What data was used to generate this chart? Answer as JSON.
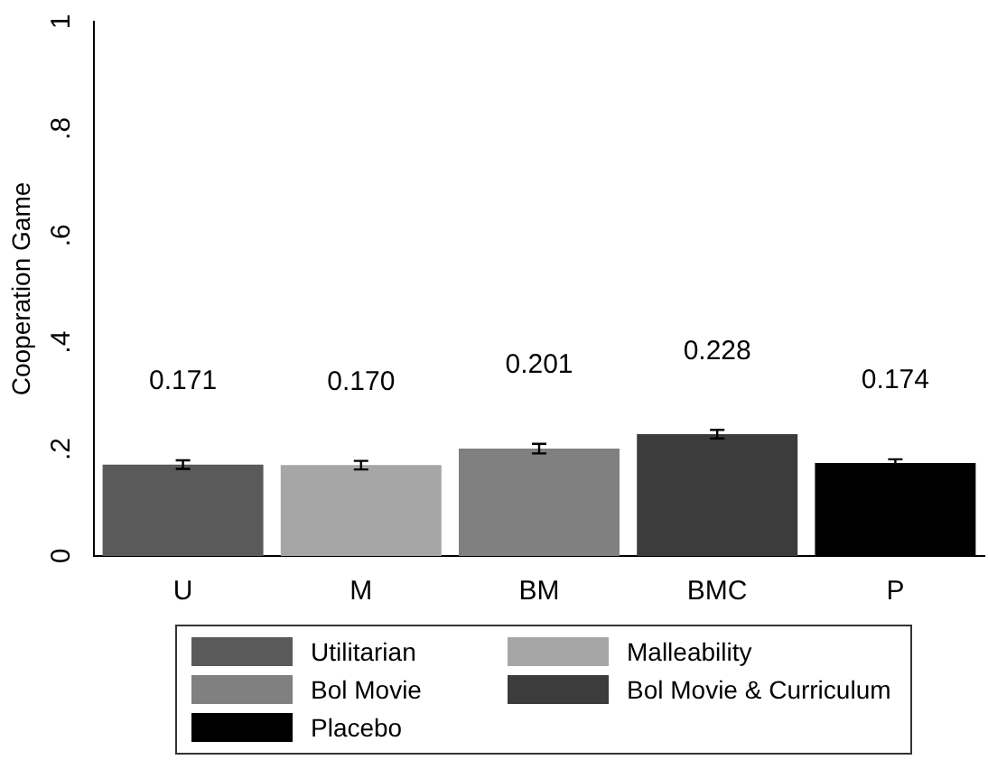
{
  "chart_data": {
    "type": "bar",
    "ylabel": "Cooperation Game",
    "categories": [
      "U",
      "M",
      "BM",
      "BMC",
      "P"
    ],
    "series": [
      {
        "name": "Utilitarian",
        "color": "#5a5a5a",
        "values": [
          0.171,
          null,
          null,
          null,
          null
        ],
        "errors": [
          0.008,
          null,
          null,
          null,
          null
        ]
      },
      {
        "name": "Malleability",
        "color": "#a6a6a6",
        "values": [
          null,
          0.17,
          null,
          null,
          null
        ],
        "errors": [
          null,
          0.008,
          null,
          null,
          null
        ]
      },
      {
        "name": "Bol Movie",
        "color": "#808080",
        "values": [
          null,
          null,
          0.201,
          null,
          null
        ],
        "errors": [
          null,
          null,
          0.009,
          null,
          null
        ]
      },
      {
        "name": "Bol Movie & Curriculum",
        "color": "#3c3c3c",
        "values": [
          null,
          null,
          null,
          0.228,
          null
        ],
        "errors": [
          null,
          null,
          null,
          0.008,
          null
        ]
      },
      {
        "name": "Placebo",
        "color": "#000000",
        "values": [
          null,
          null,
          null,
          null,
          0.174
        ],
        "errors": [
          null,
          null,
          null,
          null,
          0.007
        ]
      }
    ],
    "ylim": [
      0,
      1
    ],
    "yticks": [
      0,
      {
        "value": 0.2,
        "label": ".2"
      },
      {
        "value": 0.4,
        "label": ".4"
      },
      {
        "value": 0.6,
        "label": ".6"
      },
      {
        "value": 0.8,
        "label": ".8"
      },
      1
    ],
    "grid": false,
    "legend": "bottom",
    "value_labels": [
      "0.171",
      "0.170",
      "0.201",
      "0.228",
      "0.174"
    ]
  }
}
